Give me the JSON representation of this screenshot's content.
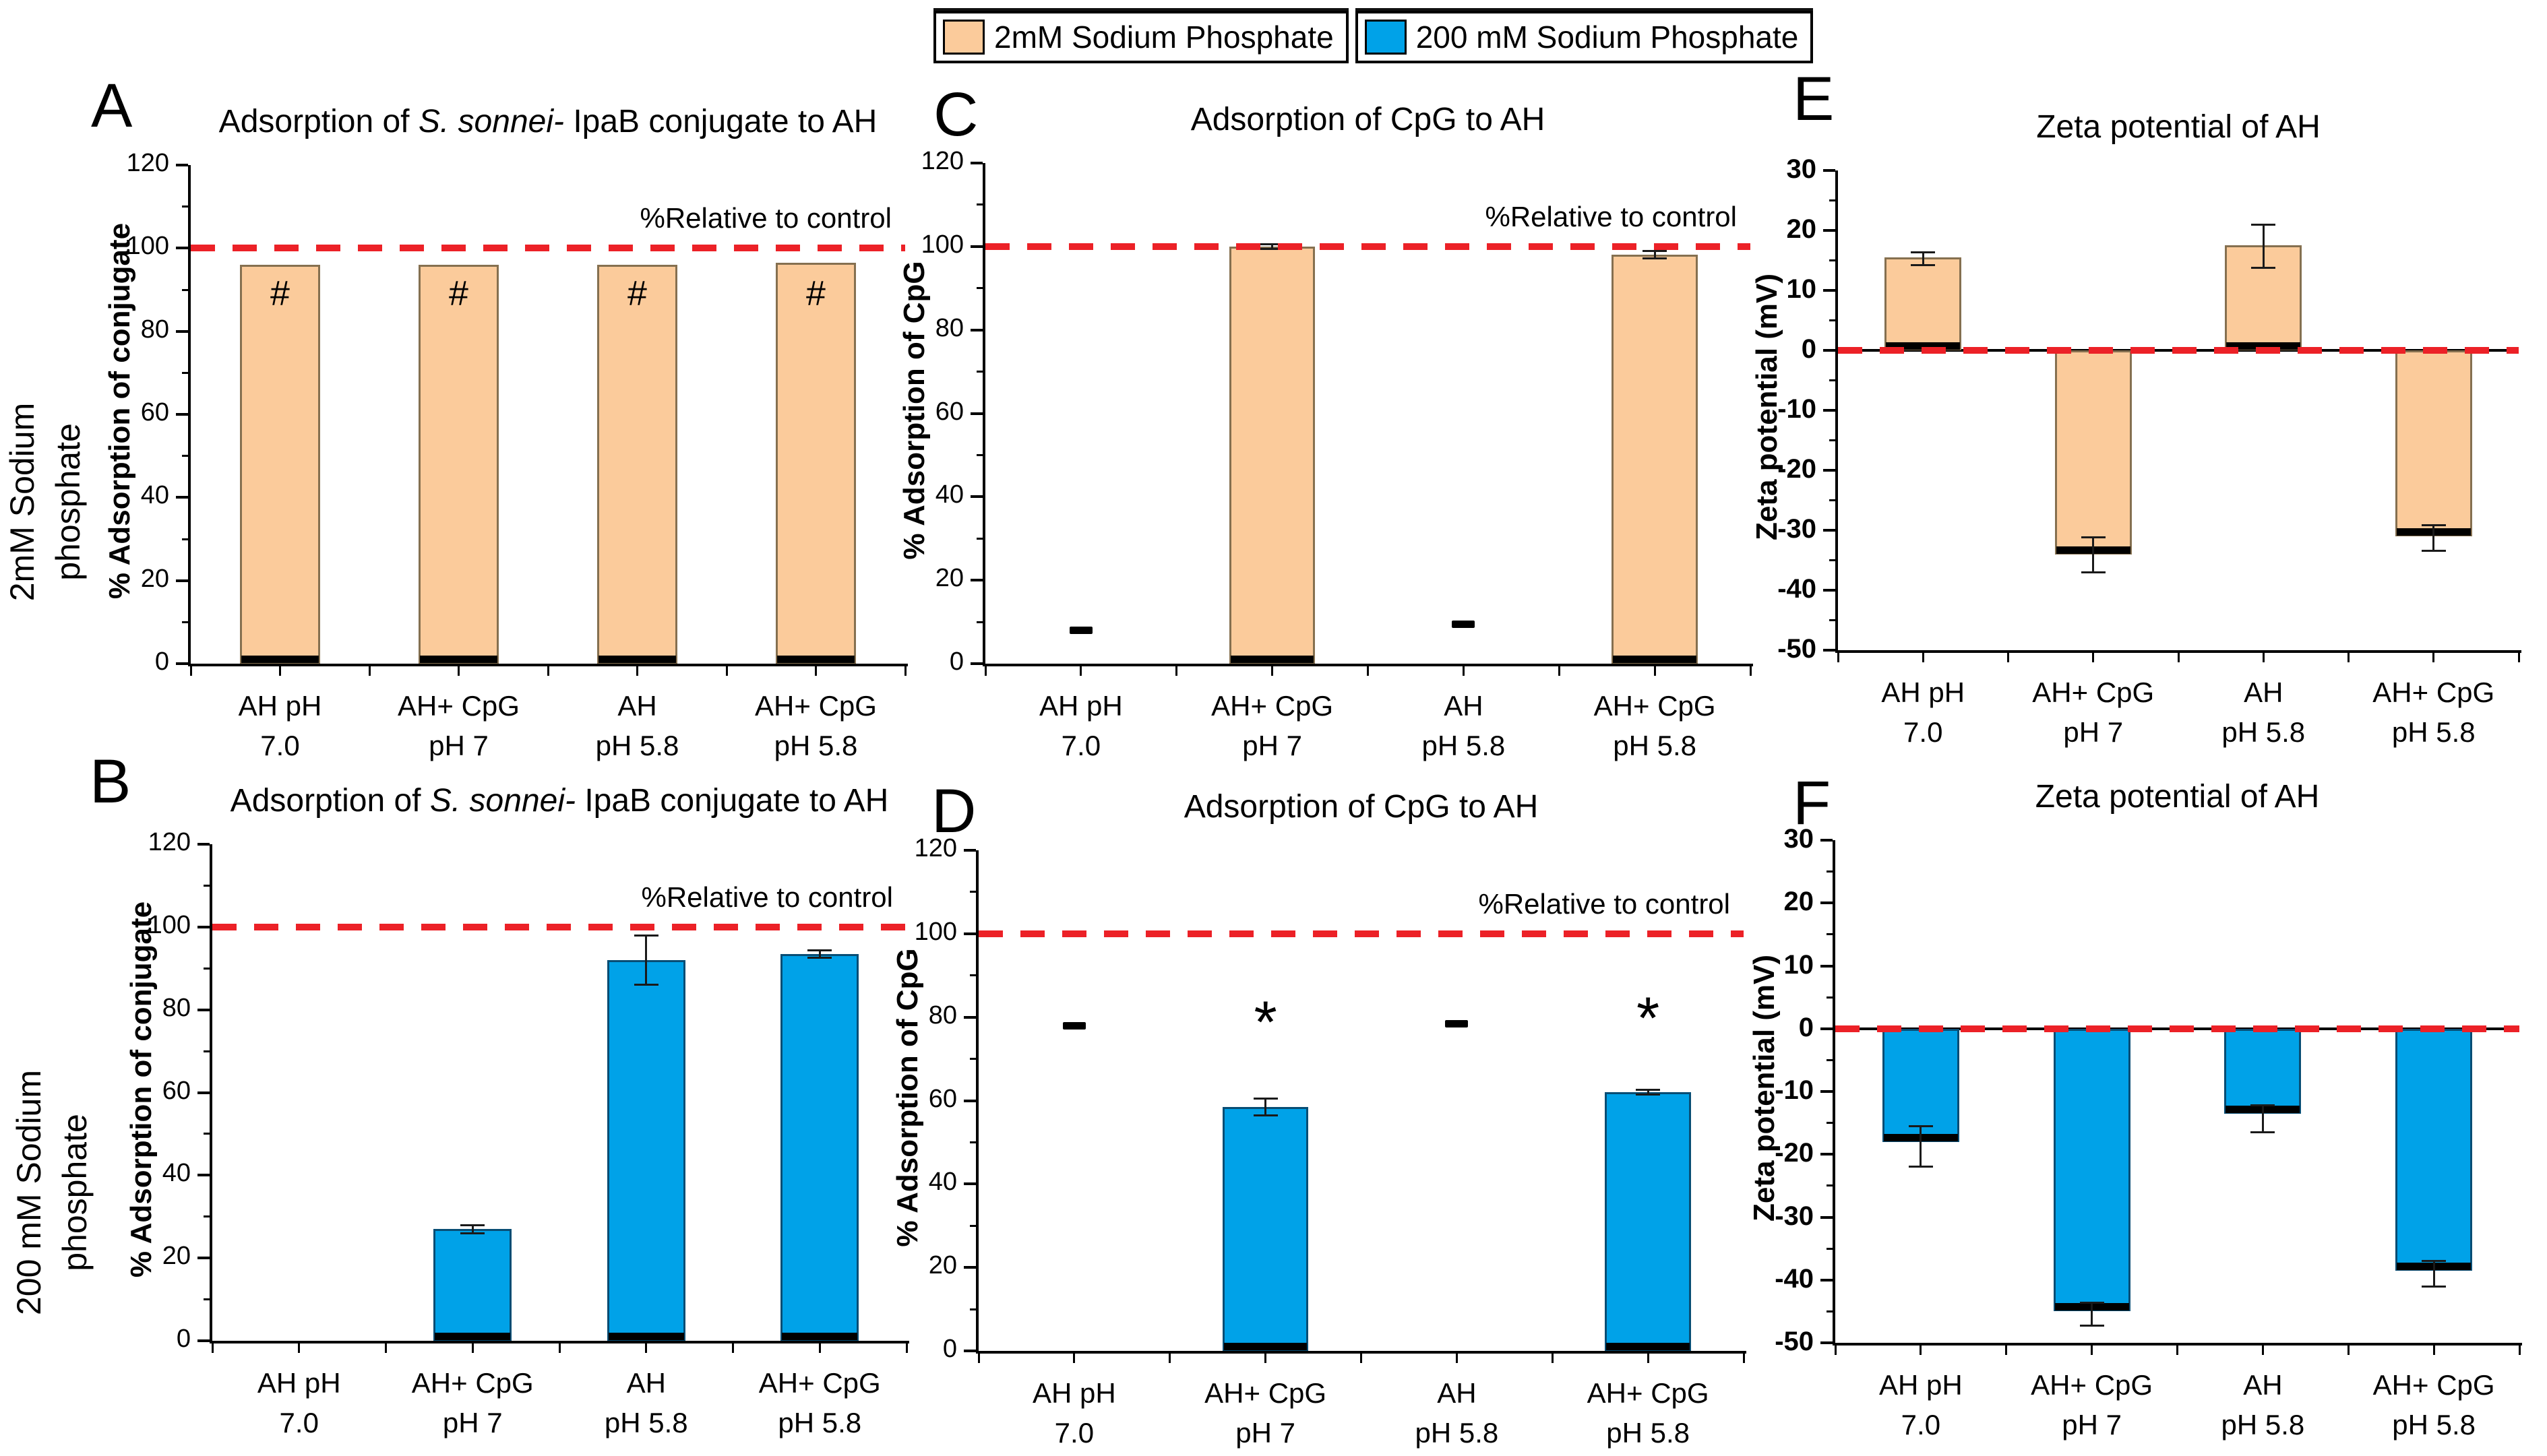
{
  "legend": {
    "items": [
      {
        "label": "2mM Sodium Phosphate",
        "color": "#FBCB9B"
      },
      {
        "label": "200 mM Sodium Phosphate",
        "color": "#00A2E8"
      }
    ]
  },
  "row_labels": [
    {
      "lines": [
        "2mM Sodium",
        "phosphate"
      ]
    },
    {
      "lines": [
        "200 mM Sodium",
        "phosphate"
      ]
    }
  ],
  "colors": {
    "ref_line": "#EC2127",
    "orange": "#FBCB9B",
    "orange_border": "#857050",
    "blue": "#00A2E8",
    "blue_border": "#084D74",
    "band": "#000000",
    "error": "#1a1a1a",
    "axis": "#000000"
  },
  "chart_data": [
    {
      "type": "bar",
      "letter": "A",
      "title_parts": [
        {
          "t": "Adsorption of "
        },
        {
          "t": "S. sonnei-",
          "i": true
        },
        {
          "t": " IpaB conjugate to AH"
        }
      ],
      "ylabel": "% Adsorption of conjugate",
      "ylim": [
        0,
        120
      ],
      "yticks": [
        0,
        20,
        40,
        60,
        80,
        100,
        120
      ],
      "minor_step": 10,
      "ref_line": {
        "y": 100,
        "label": "%Relative to control"
      },
      "series_color": "orange",
      "categories": [
        [
          "AH pH",
          "7.0"
        ],
        [
          "AH+ CpG",
          "pH 7"
        ],
        [
          "AH",
          "pH 5.8"
        ],
        [
          "AH+ CpG",
          "pH 5.8"
        ]
      ],
      "bars": [
        {
          "v": 96,
          "band": "base"
        },
        {
          "v": 96,
          "band": "base"
        },
        {
          "v": 96,
          "band": "base"
        },
        {
          "v": 96.5,
          "band": "base"
        }
      ],
      "marks": [
        {
          "g": 0,
          "kind": "hash",
          "text": "#",
          "y": 89
        },
        {
          "g": 1,
          "kind": "hash",
          "text": "#",
          "y": 89
        },
        {
          "g": 2,
          "kind": "hash",
          "text": "#",
          "y": 89
        },
        {
          "g": 3,
          "kind": "hash",
          "text": "#",
          "y": 89
        }
      ]
    },
    {
      "type": "bar",
      "letter": "B",
      "title_parts": [
        {
          "t": "Adsorption of "
        },
        {
          "t": "S. sonnei-",
          "i": true
        },
        {
          "t": " IpaB conjugate to AH"
        }
      ],
      "ylabel": "% Adsorption of conjugate",
      "ylim": [
        0,
        120
      ],
      "yticks": [
        0,
        20,
        40,
        60,
        80,
        100,
        120
      ],
      "minor_step": 10,
      "ref_line": {
        "y": 100,
        "label": "%Relative to control"
      },
      "series_color": "blue",
      "categories": [
        [
          "AH pH",
          "7.0"
        ],
        [
          "AH+ CpG",
          "pH 7"
        ],
        [
          "AH",
          "pH 5.8"
        ],
        [
          "AH+ CpG",
          "pH 5.8"
        ]
      ],
      "bars": [
        null,
        {
          "v": 27,
          "err": [
            26,
            28
          ],
          "band": "base"
        },
        {
          "v": 92,
          "err": [
            86,
            98
          ],
          "band": "base"
        },
        {
          "v": 93.5,
          "err": [
            92.6,
            94.4
          ],
          "band": "base"
        }
      ],
      "marks": []
    },
    {
      "type": "bar",
      "letter": "C",
      "title_parts": [
        {
          "t": "Adsorption of CpG to AH"
        }
      ],
      "ylabel": "% Adsorption of CpG",
      "ylim": [
        0,
        120
      ],
      "yticks": [
        0,
        20,
        40,
        60,
        80,
        100,
        120
      ],
      "minor_step": 10,
      "ref_line": {
        "y": 100,
        "label": "%Relative to control"
      },
      "series_color": "orange",
      "categories": [
        [
          "AH pH",
          "7.0"
        ],
        [
          "AH+ CpG",
          "pH 7"
        ],
        [
          "AH",
          "pH 5.8"
        ],
        [
          "AH+ CpG",
          "pH 5.8"
        ]
      ],
      "bars": [
        null,
        {
          "v": 100,
          "err": [
            99.4,
            100.6
          ],
          "band": "base"
        },
        null,
        {
          "v": 98,
          "err": [
            97.1,
            98.9
          ],
          "band": "base"
        }
      ],
      "marks": [
        {
          "g": 0,
          "kind": "dash",
          "y": 8
        },
        {
          "g": 2,
          "kind": "dash",
          "y": 9.5
        }
      ]
    },
    {
      "type": "bar",
      "letter": "D",
      "title_parts": [
        {
          "t": "Adsorption of CpG to AH"
        }
      ],
      "ylabel": "% Adsorption of CpG",
      "ylim": [
        0,
        120
      ],
      "yticks": [
        0,
        20,
        40,
        60,
        80,
        100,
        120
      ],
      "minor_step": 10,
      "ref_line": {
        "y": 100,
        "label": "%Relative to control"
      },
      "series_color": "blue",
      "categories": [
        [
          "AH pH",
          "7.0"
        ],
        [
          "AH+ CpG",
          "pH 7"
        ],
        [
          "AH",
          "pH 5.8"
        ],
        [
          "AH+ CpG",
          "pH 5.8"
        ]
      ],
      "bars": [
        null,
        {
          "v": 58.5,
          "err": [
            56.5,
            60.5
          ],
          "band": "base"
        },
        null,
        {
          "v": 62,
          "err": [
            61.4,
            62.6
          ],
          "band": "base"
        }
      ],
      "marks": [
        {
          "g": 0,
          "kind": "dash",
          "y": 78
        },
        {
          "g": 1,
          "kind": "star",
          "text": "*",
          "y": 81
        },
        {
          "g": 2,
          "kind": "dash",
          "y": 78.5
        },
        {
          "g": 3,
          "kind": "star",
          "text": "*",
          "y": 82
        }
      ]
    },
    {
      "type": "bar",
      "letter": "E",
      "title_parts": [
        {
          "t": "Zeta potential of AH"
        }
      ],
      "ylabel": "Zeta potential (mV)",
      "ylim": [
        -50,
        30
      ],
      "yticks": [
        30,
        20,
        10,
        0,
        -10,
        -20,
        -30,
        -40,
        -50
      ],
      "minor_step": 5,
      "ref_line": {
        "y": 0,
        "label": ""
      },
      "zero_line": true,
      "series_color": "orange",
      "categories": [
        [
          "AH pH",
          "7.0"
        ],
        [
          "AH+ CpG",
          "pH 7"
        ],
        [
          "AH",
          "pH 5.8"
        ],
        [
          "AH+ CpG",
          "pH 5.8"
        ]
      ],
      "bars": [
        {
          "v": 15.5,
          "err": [
            14.2,
            16.4
          ],
          "band": "base"
        },
        {
          "v": -34,
          "err": [
            -37,
            -31.2
          ],
          "band": "tip"
        },
        {
          "v": 17.5,
          "err": [
            13.8,
            21
          ],
          "band": "base"
        },
        {
          "v": -31,
          "err": [
            -33.4,
            -29.2
          ],
          "band": "tip"
        }
      ],
      "marks": []
    },
    {
      "type": "bar",
      "letter": "F",
      "title_parts": [
        {
          "t": "Zeta potential of AH"
        }
      ],
      "ylabel": "Zeta potential (mV)",
      "ylim": [
        -50,
        30
      ],
      "yticks": [
        30,
        20,
        10,
        0,
        -10,
        -20,
        -30,
        -40,
        -50
      ],
      "minor_step": 5,
      "ref_line": {
        "y": 0,
        "label": ""
      },
      "zero_line": true,
      "series_color": "blue",
      "categories": [
        [
          "AH pH",
          "7.0"
        ],
        [
          "AH+ CpG",
          "pH 7"
        ],
        [
          "AH",
          "pH 5.8"
        ],
        [
          "AH+ CpG",
          "pH 5.8"
        ]
      ],
      "bars": [
        {
          "v": -18,
          "err": [
            -22,
            -15.5
          ],
          "band": "tip"
        },
        {
          "v": -45,
          "err": [
            -47.3,
            -43.6
          ],
          "band": "tip"
        },
        {
          "v": -13.5,
          "err": [
            -16.5,
            -12.2
          ],
          "band": "tip"
        },
        {
          "v": -38.5,
          "err": [
            -41,
            -37
          ],
          "band": "tip"
        }
      ],
      "marks": []
    }
  ]
}
